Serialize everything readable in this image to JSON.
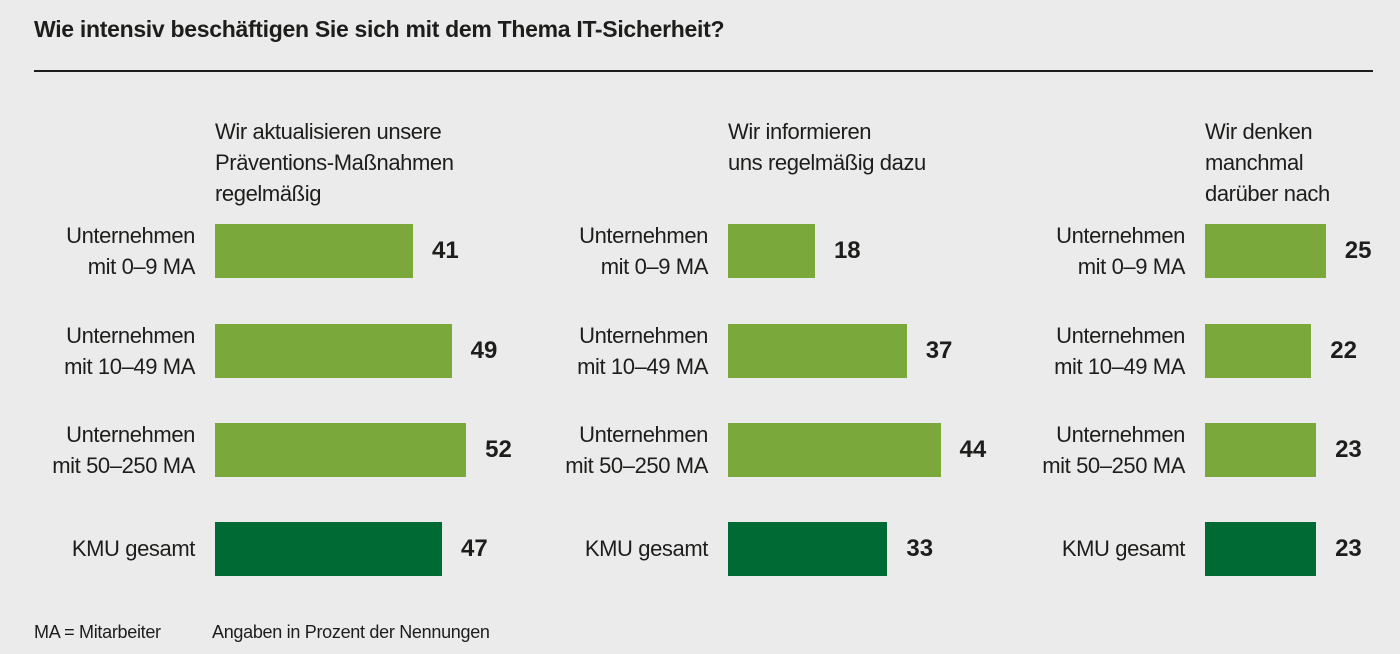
{
  "title": "Wie intensiv beschäftigen Sie sich mit dem Thema IT-Sicherheit?",
  "colors": {
    "segment": "#7aa83a",
    "total": "#006a35",
    "background": "#ebebeb",
    "text": "#1d1d1b"
  },
  "footnotes": {
    "abbrev": "MA = Mitarbeiter",
    "unit": "Angaben in Prozent der Nennungen"
  },
  "chart_data": [
    {
      "type": "bar",
      "orientation": "horizontal",
      "title": "Wir aktualisieren unsere Präventions-Maßnahmen regelmäßig",
      "title_lines": [
        "Wir aktualisieren unsere",
        "Präventions-Maßnahmen",
        "regelmäßig"
      ],
      "categories": [
        "Unternehmen mit 0–9 MA",
        "Unternehmen mit 10–49 MA",
        "Unternehmen mit 50–250 MA",
        "KMU gesamt"
      ],
      "category_lines": [
        [
          "Unternehmen",
          "mit 0–9 MA"
        ],
        [
          "Unternehmen",
          "mit 10–49 MA"
        ],
        [
          "Unternehmen",
          "mit 50–250 MA"
        ],
        [
          "KMU gesamt"
        ]
      ],
      "values": [
        41,
        49,
        52,
        47
      ],
      "highlight": [
        false,
        false,
        false,
        true
      ],
      "unit": "%",
      "xlim": [
        0,
        100
      ]
    },
    {
      "type": "bar",
      "orientation": "horizontal",
      "title": "Wir informieren uns regelmäßig dazu",
      "title_lines": [
        "Wir informieren",
        "uns regelmäßig dazu"
      ],
      "categories": [
        "Unternehmen mit 0–9 MA",
        "Unternehmen mit 10–49 MA",
        "Unternehmen mit 50–250 MA",
        "KMU gesamt"
      ],
      "category_lines": [
        [
          "Unternehmen",
          "mit 0–9 MA"
        ],
        [
          "Unternehmen",
          "mit 10–49 MA"
        ],
        [
          "Unternehmen",
          "mit 50–250 MA"
        ],
        [
          "KMU gesamt"
        ]
      ],
      "values": [
        18,
        37,
        44,
        33
      ],
      "highlight": [
        false,
        false,
        false,
        true
      ],
      "unit": "%",
      "xlim": [
        0,
        100
      ]
    },
    {
      "type": "bar",
      "orientation": "horizontal",
      "title": "Wir denken manchmal darüber nach",
      "title_lines": [
        "Wir denken",
        "manchmal",
        "darüber nach"
      ],
      "categories": [
        "Unternehmen mit 0–9 MA",
        "Unternehmen mit 10–49 MA",
        "Unternehmen mit 50–250 MA",
        "KMU gesamt"
      ],
      "category_lines": [
        [
          "Unternehmen",
          "mit 0–9 MA"
        ],
        [
          "Unternehmen",
          "mit 10–49 MA"
        ],
        [
          "Unternehmen",
          "mit 50–250 MA"
        ],
        [
          "KMU gesamt"
        ]
      ],
      "values": [
        25,
        22,
        23,
        23
      ],
      "highlight": [
        false,
        false,
        false,
        true
      ],
      "unit": "%",
      "xlim": [
        0,
        100
      ]
    }
  ]
}
